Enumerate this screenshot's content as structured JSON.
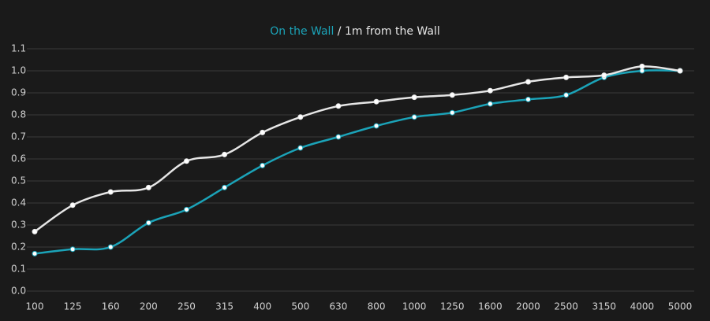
{
  "chart_data": {
    "type": "line",
    "legend_separator": "/",
    "categories": [
      "100",
      "125",
      "160",
      "200",
      "250",
      "315",
      "400",
      "500",
      "630",
      "800",
      "1000",
      "1250",
      "1600",
      "2000",
      "2500",
      "3150",
      "4000",
      "5000"
    ],
    "series": [
      {
        "name": "On the Wall",
        "color": "#1ba3b8",
        "values": [
          0.17,
          0.19,
          0.2,
          0.31,
          0.37,
          0.47,
          0.57,
          0.65,
          0.7,
          0.75,
          0.79,
          0.81,
          0.85,
          0.87,
          0.89,
          0.97,
          1.0,
          1.0
        ]
      },
      {
        "name": "1m from the Wall",
        "color": "#e6e6e6",
        "values": [
          0.27,
          0.39,
          0.45,
          0.47,
          0.59,
          0.62,
          0.72,
          0.79,
          0.84,
          0.86,
          0.88,
          0.89,
          0.91,
          0.95,
          0.97,
          0.98,
          1.02,
          1.0
        ]
      }
    ],
    "ylim": [
      0,
      1.1
    ],
    "yticks": [
      {
        "value": 0,
        "label": "0.0"
      },
      0.1,
      0.2,
      0.3,
      0.4,
      0.5,
      0.6,
      0.7,
      0.8,
      0.9,
      {
        "value": 1,
        "label": "1.0"
      },
      1.1
    ],
    "grid": true
  }
}
